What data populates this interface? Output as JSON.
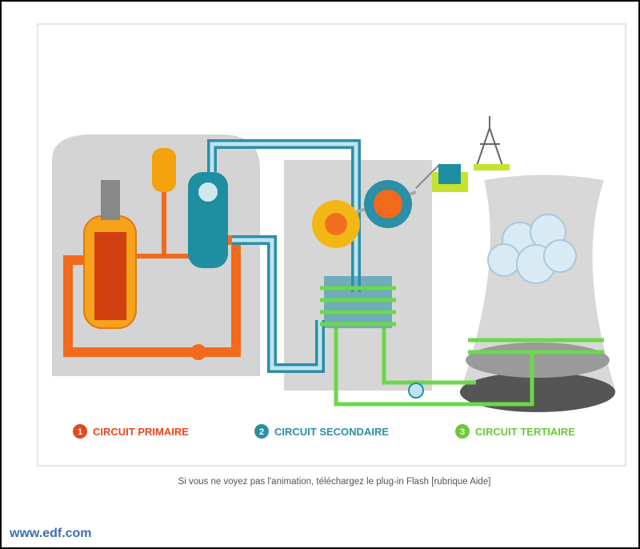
{
  "diagram": {
    "legend": [
      {
        "number": "1",
        "label": "CIRCUIT PRIMAIRE"
      },
      {
        "number": "2",
        "label": "CIRCUIT SECONDAIRE"
      },
      {
        "number": "3",
        "label": "CIRCUIT TERTIAIRE"
      }
    ]
  },
  "caption": "Si vous ne voyez pas l'animation, téléchargez le plug-in Flash [rubrique Aide]",
  "footer": {
    "link": "www.edf.com"
  }
}
